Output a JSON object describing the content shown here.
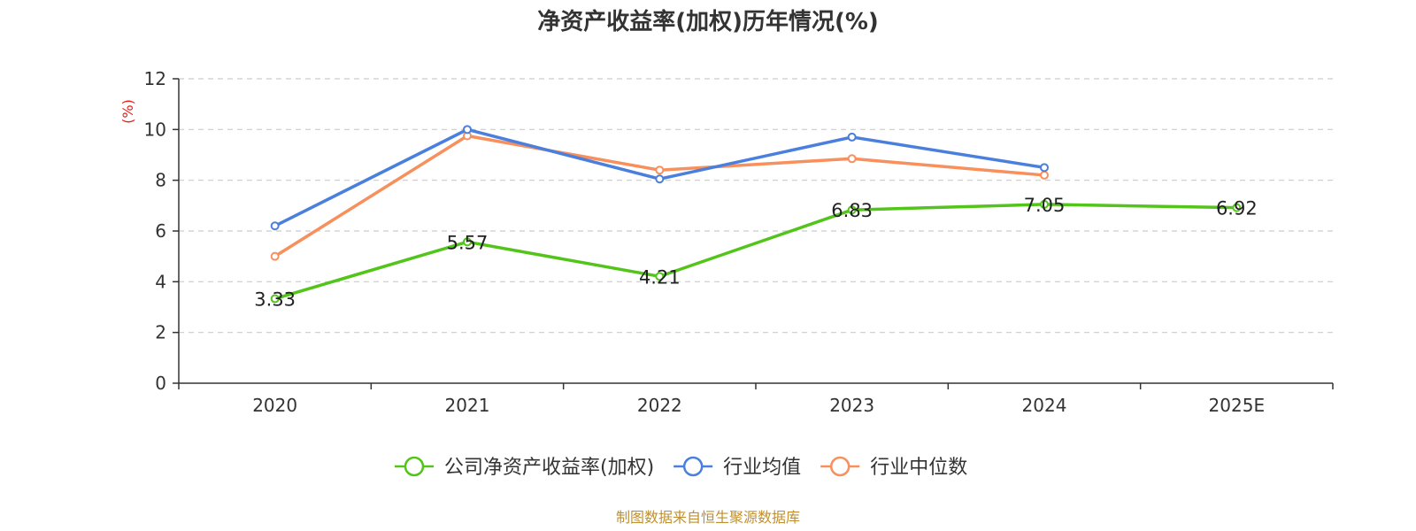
{
  "chart_data": {
    "type": "line",
    "title": "净资产收益率(加权)历年情况(%)",
    "ylabel": "(%)",
    "xlabel": "",
    "categories": [
      "2020",
      "2021",
      "2022",
      "2023",
      "2024",
      "2025E"
    ],
    "ylim": [
      0,
      12
    ],
    "yticks": [
      0,
      2,
      4,
      6,
      8,
      10,
      12
    ],
    "grid": true,
    "legend_position": "bottom",
    "series": [
      {
        "name": "公司净资产收益率(加权)",
        "color": "#52c41a",
        "values": [
          3.33,
          5.57,
          4.21,
          6.83,
          7.05,
          6.92
        ],
        "labels": [
          "3.33",
          "5.57",
          "4.21",
          "6.83",
          "7.05",
          "6.92"
        ],
        "show_labels": true
      },
      {
        "name": "行业均值",
        "color": "#4a7fde",
        "values": [
          6.2,
          10.0,
          8.05,
          9.7,
          8.5,
          null
        ],
        "show_labels": false
      },
      {
        "name": "行业中位数",
        "color": "#f7905c",
        "values": [
          5.0,
          9.75,
          8.4,
          8.85,
          8.2,
          null
        ],
        "show_labels": false
      }
    ],
    "source": "制图数据来自恒生聚源数据库",
    "colors": {
      "axis": "#333333",
      "grid": "#cccccc",
      "ylabel": "#e8211b",
      "source": "#c09030"
    }
  }
}
